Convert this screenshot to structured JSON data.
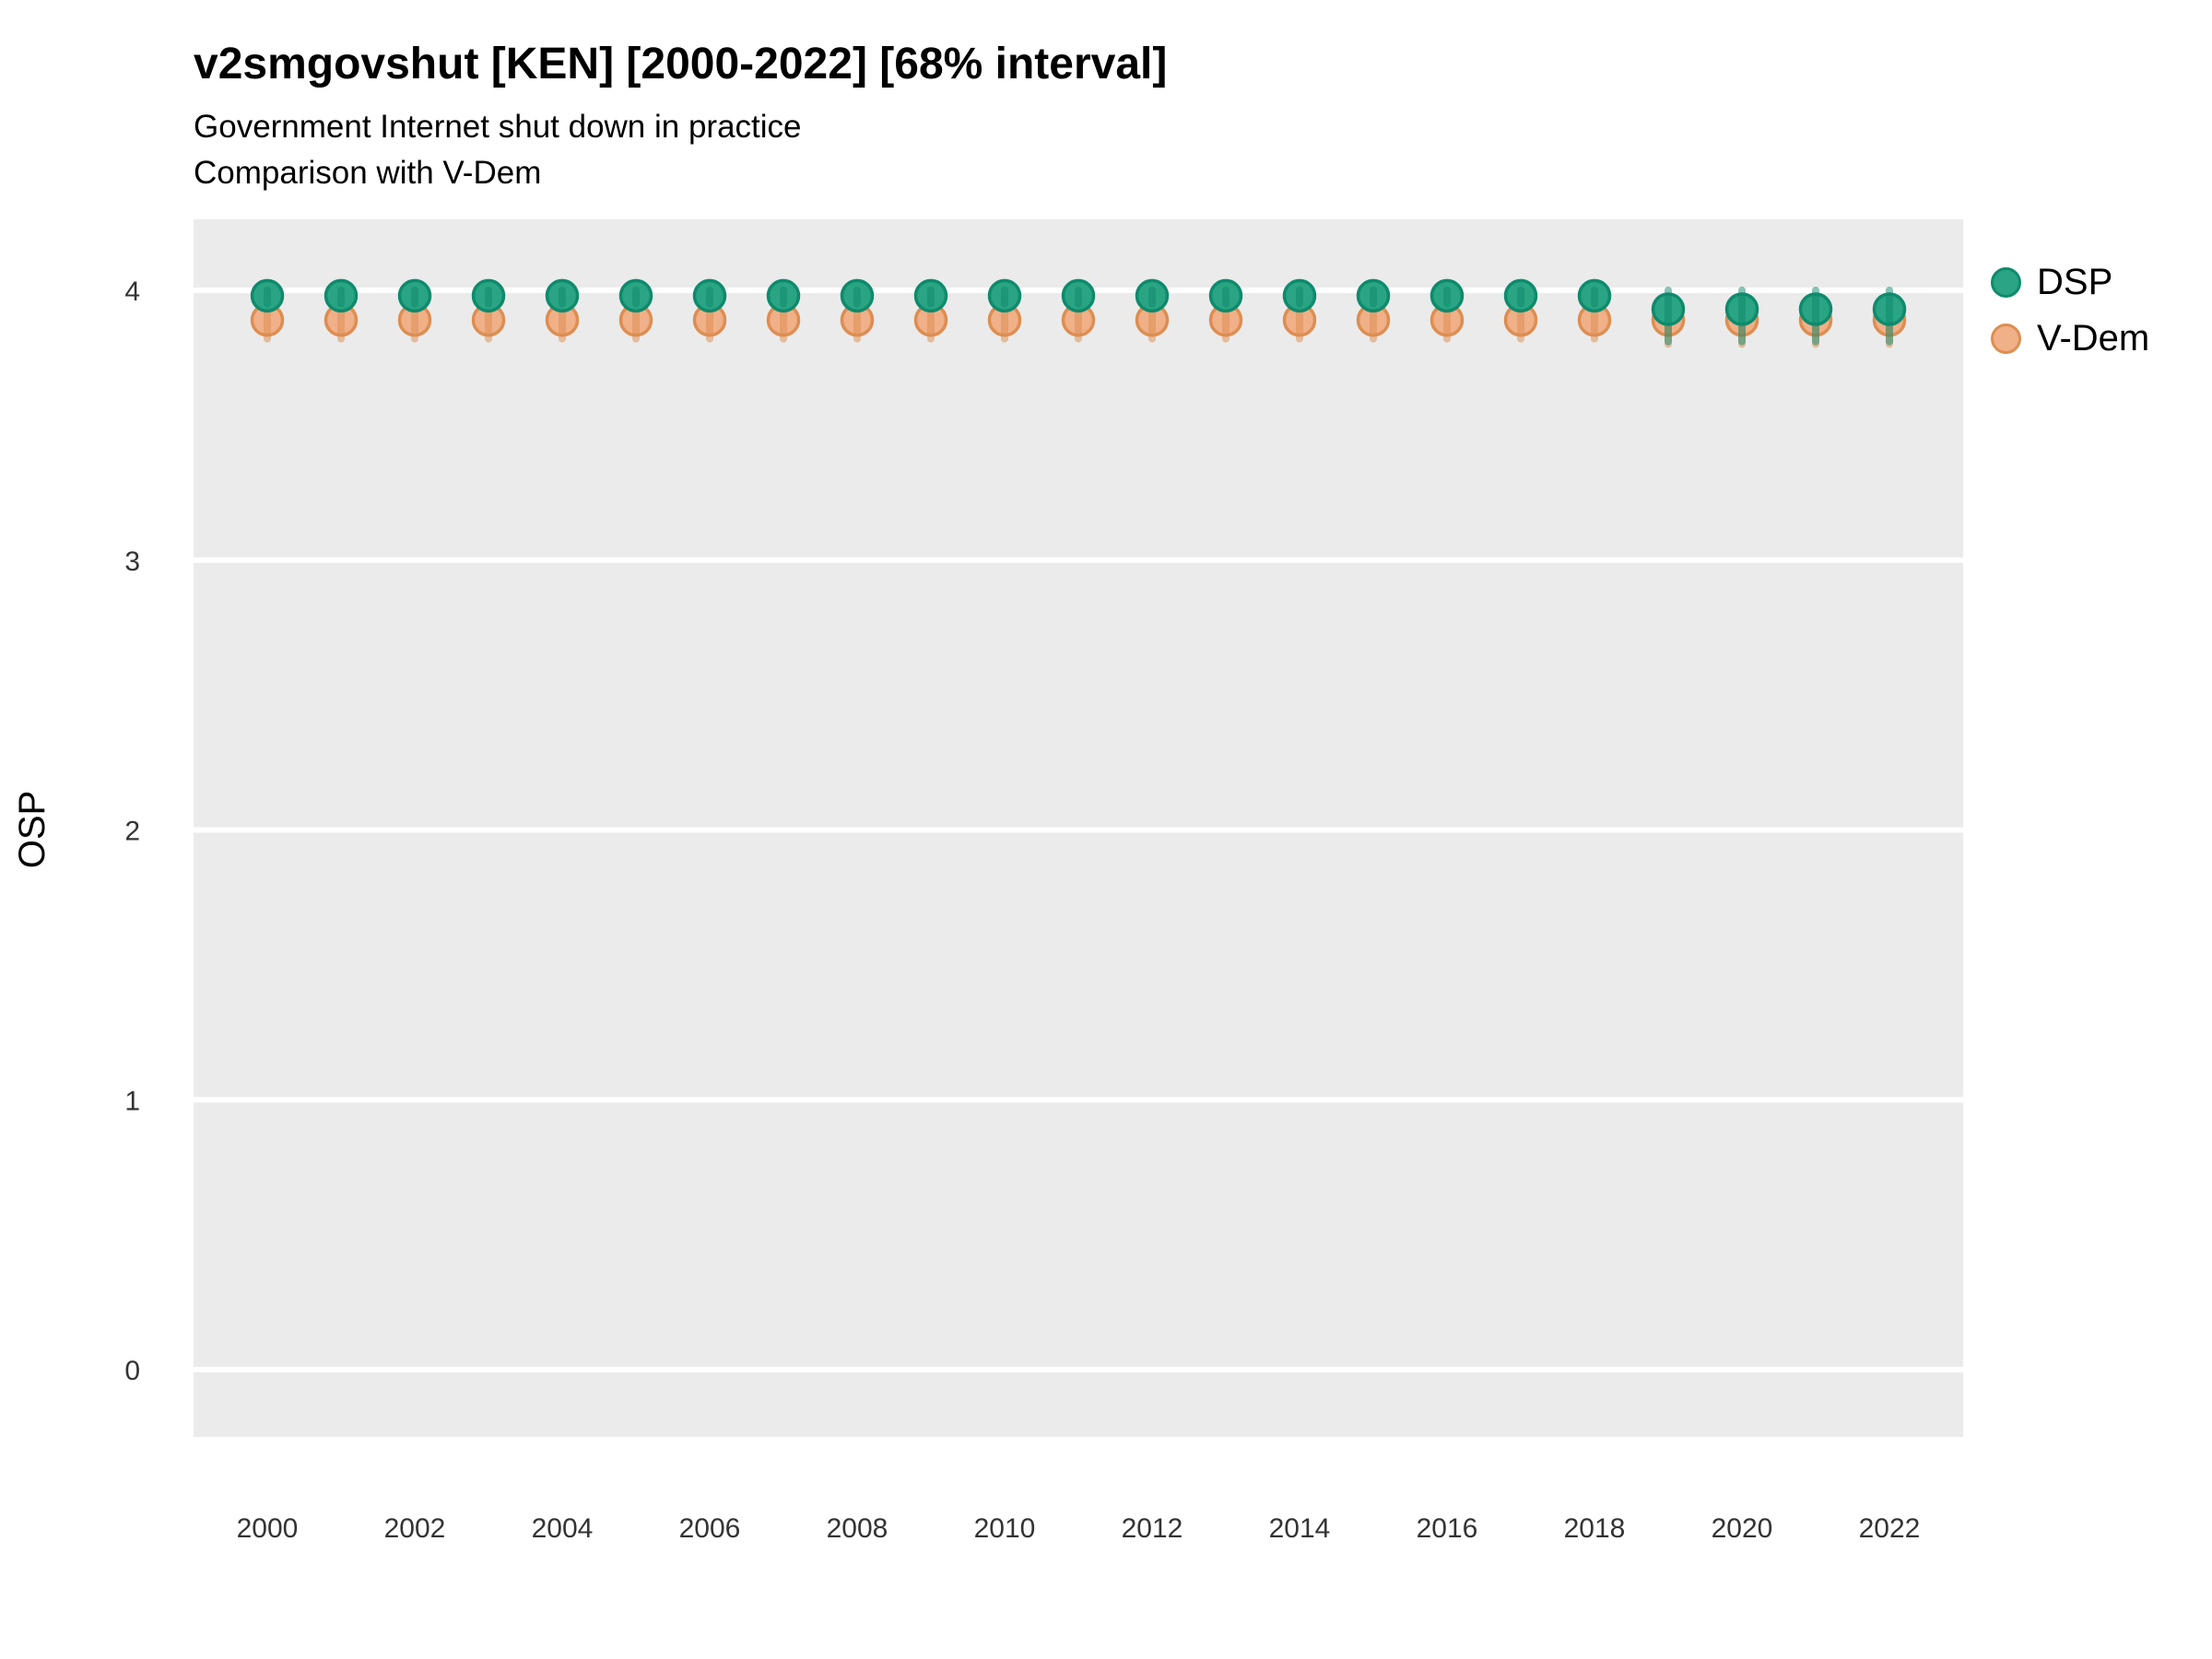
{
  "header": {
    "title": "v2smgovshut [KEN] [2000-2022] [68% interval]",
    "subtitle1": "Government Internet shut down in practice",
    "subtitle2": "Comparison with V-Dem"
  },
  "legend": {
    "position": "right-top",
    "items": [
      {
        "label": "DSP"
      },
      {
        "label": "V-Dem"
      }
    ]
  },
  "chart_data": {
    "type": "scatter",
    "title": "v2smgovshut [KEN] [2000-2022] [68% interval]",
    "subtitle": [
      "Government Internet shut down in practice",
      "Comparison with V-Dem"
    ],
    "xlabel": "",
    "ylabel": "OSP",
    "ylim": [
      -0.25,
      4.26
    ],
    "yticks": [
      0,
      1,
      2,
      3,
      4
    ],
    "xticks": [
      2000,
      2002,
      2004,
      2006,
      2008,
      2010,
      2012,
      2014,
      2016,
      2018,
      2020,
      2022
    ],
    "grid": "horizontal-white-major-only",
    "panel_bg": "#ebebeb",
    "grid_color": "#ffffff",
    "interval_label": "68% interval",
    "x": [
      2000,
      2001,
      2002,
      2003,
      2004,
      2005,
      2006,
      2007,
      2008,
      2009,
      2010,
      2011,
      2012,
      2013,
      2014,
      2015,
      2016,
      2017,
      2018,
      2019,
      2020,
      2021,
      2022
    ],
    "series": [
      {
        "name": "DSP",
        "color": "#29a583",
        "stroke": "#0f8a6d",
        "values": [
          3.98,
          3.98,
          3.98,
          3.98,
          3.98,
          3.98,
          3.98,
          3.98,
          3.98,
          3.98,
          3.98,
          3.98,
          3.98,
          3.98,
          3.98,
          3.98,
          3.98,
          3.98,
          3.98,
          3.93,
          3.93,
          3.93,
          3.93
        ],
        "lo": [
          3.95,
          3.95,
          3.95,
          3.95,
          3.95,
          3.95,
          3.95,
          3.95,
          3.95,
          3.95,
          3.95,
          3.95,
          3.95,
          3.95,
          3.95,
          3.95,
          3.95,
          3.95,
          3.95,
          3.81,
          3.81,
          3.81,
          3.81
        ],
        "hi": [
          4.0,
          4.0,
          4.0,
          4.0,
          4.0,
          4.0,
          4.0,
          4.0,
          4.0,
          4.0,
          4.0,
          4.0,
          4.0,
          4.0,
          4.0,
          4.0,
          4.0,
          4.0,
          4.0,
          4.0,
          4.0,
          4.0,
          4.0
        ]
      },
      {
        "name": "V-Dem",
        "color": "#f0b088",
        "stroke": "#dd8e52",
        "values": [
          3.89,
          3.89,
          3.89,
          3.89,
          3.89,
          3.89,
          3.89,
          3.89,
          3.89,
          3.89,
          3.89,
          3.89,
          3.89,
          3.89,
          3.89,
          3.89,
          3.89,
          3.89,
          3.89,
          3.89,
          3.89,
          3.89,
          3.89
        ],
        "lo": [
          3.82,
          3.82,
          3.82,
          3.82,
          3.82,
          3.82,
          3.82,
          3.82,
          3.82,
          3.82,
          3.82,
          3.82,
          3.82,
          3.82,
          3.82,
          3.82,
          3.82,
          3.82,
          3.82,
          3.8,
          3.8,
          3.8,
          3.8
        ],
        "hi": [
          3.96,
          3.96,
          3.96,
          3.96,
          3.96,
          3.96,
          3.96,
          3.96,
          3.96,
          3.96,
          3.96,
          3.96,
          3.96,
          3.96,
          3.96,
          3.96,
          3.96,
          3.96,
          3.96,
          3.96,
          3.96,
          3.96,
          3.96
        ]
      }
    ]
  }
}
